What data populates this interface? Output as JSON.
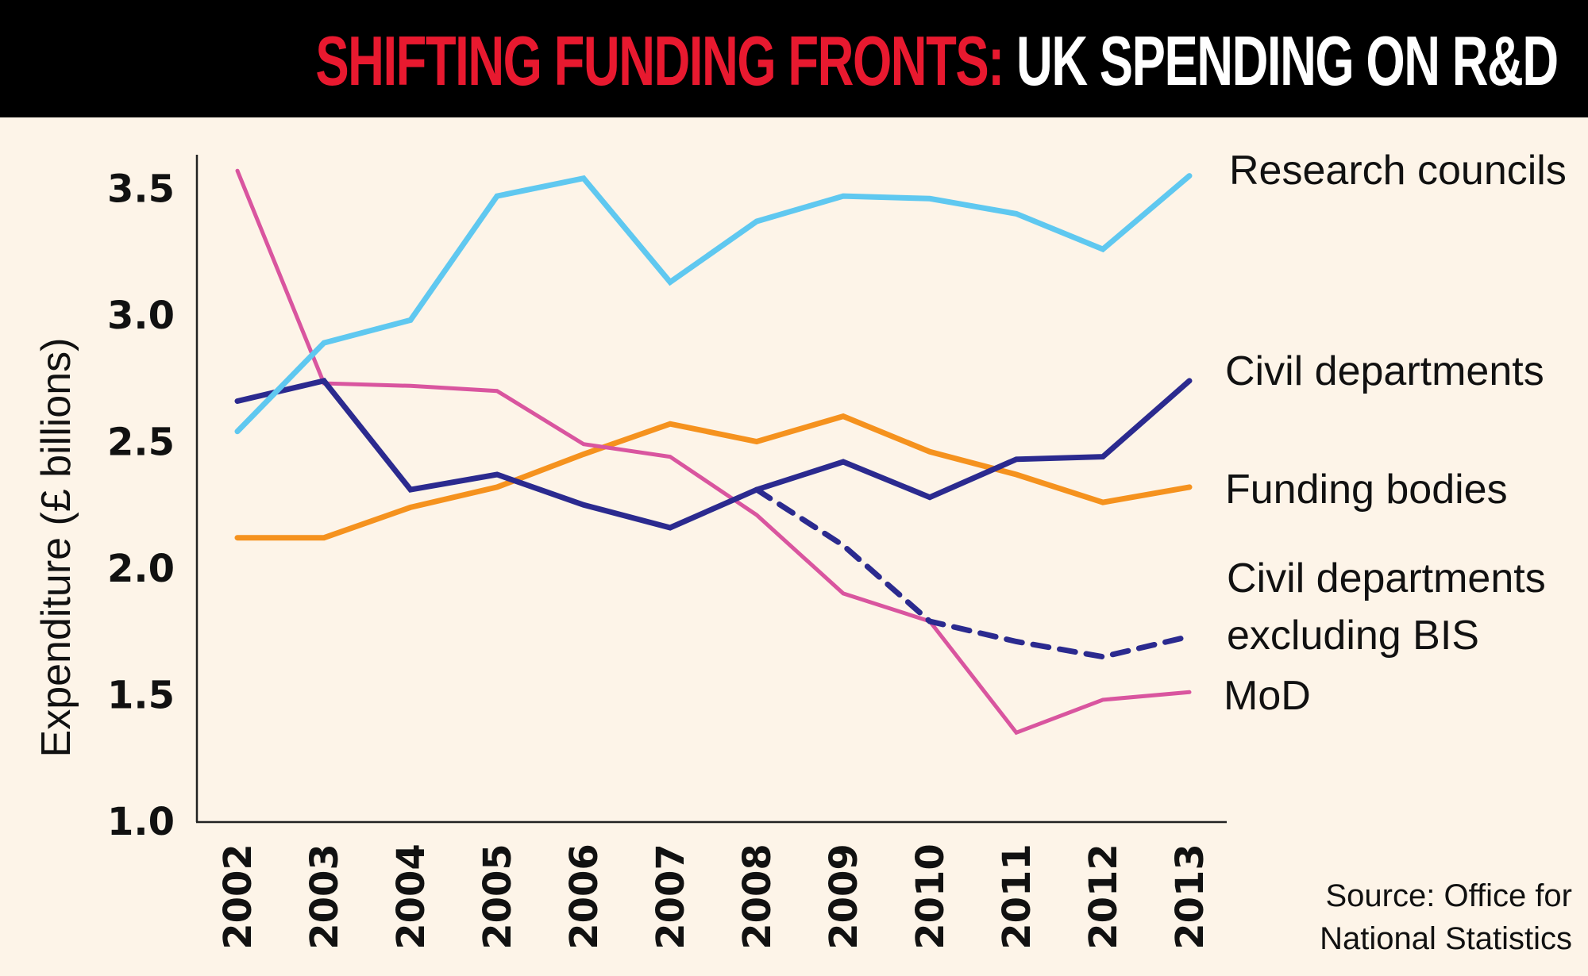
{
  "header": {
    "title_red": "SHIFTING FUNDING FRONTS:",
    "title_white": "UK SPENDING ON R&D"
  },
  "colors": {
    "background": "#fdf4e8",
    "title_bar": "#000000",
    "title_red": "#e8192f",
    "research_councils": "#5fc8f0",
    "civil_departments": "#2b2a8f",
    "funding_bodies": "#f5921e",
    "civil_departments_excl_bis": "#2b2a8f",
    "mod": "#d9559f"
  },
  "source_note": [
    "Source: Office for",
    "National Statistics"
  ],
  "chart_data": {
    "type": "line",
    "title": "SHIFTING FUNDING FRONTS: UK SPENDING ON R&D",
    "xlabel": "",
    "ylabel": "Expenditure (£ billions)",
    "ylim": [
      1.0,
      3.5
    ],
    "yticks": [
      "3.5",
      "3.0",
      "2.5",
      "2.0",
      "1.5",
      "1.0"
    ],
    "ytick_values": [
      3.5,
      3.0,
      2.5,
      2.0,
      1.5,
      1.0
    ],
    "x": [
      "2002",
      "2003",
      "2004",
      "2005",
      "2006",
      "2007",
      "2008",
      "2009",
      "2010",
      "2011",
      "2012",
      "2013"
    ],
    "grid": false,
    "legend": "direct labels at right end of lines",
    "series": [
      {
        "name": "Research councils",
        "key": "research_councils",
        "style": "solid",
        "values": [
          2.54,
          2.89,
          2.98,
          3.47,
          3.54,
          3.13,
          3.37,
          3.47,
          3.46,
          3.4,
          3.26,
          3.55
        ]
      },
      {
        "name": "Civil departments",
        "key": "civil_departments",
        "style": "solid",
        "values": [
          2.66,
          2.74,
          2.31,
          2.37,
          2.25,
          2.16,
          2.31,
          2.42,
          2.28,
          2.43,
          2.44,
          2.74
        ]
      },
      {
        "name": "Funding bodies",
        "key": "funding_bodies",
        "style": "solid",
        "values": [
          2.12,
          2.12,
          2.24,
          2.32,
          2.45,
          2.57,
          2.5,
          2.6,
          2.46,
          2.37,
          2.26,
          2.32
        ]
      },
      {
        "name": "Civil departments excluding BIS",
        "label_lines": [
          "Civil departments",
          "excluding BIS"
        ],
        "key": "civil_departments_excl_bis",
        "style": "dashed",
        "values": [
          null,
          null,
          null,
          null,
          null,
          null,
          2.31,
          2.09,
          1.79,
          1.71,
          1.65,
          1.73
        ]
      },
      {
        "name": "MoD",
        "key": "mod",
        "style": "solid",
        "values": [
          3.57,
          2.73,
          2.72,
          2.7,
          2.49,
          2.44,
          2.21,
          1.9,
          1.79,
          1.35,
          1.48,
          1.51
        ]
      }
    ]
  }
}
